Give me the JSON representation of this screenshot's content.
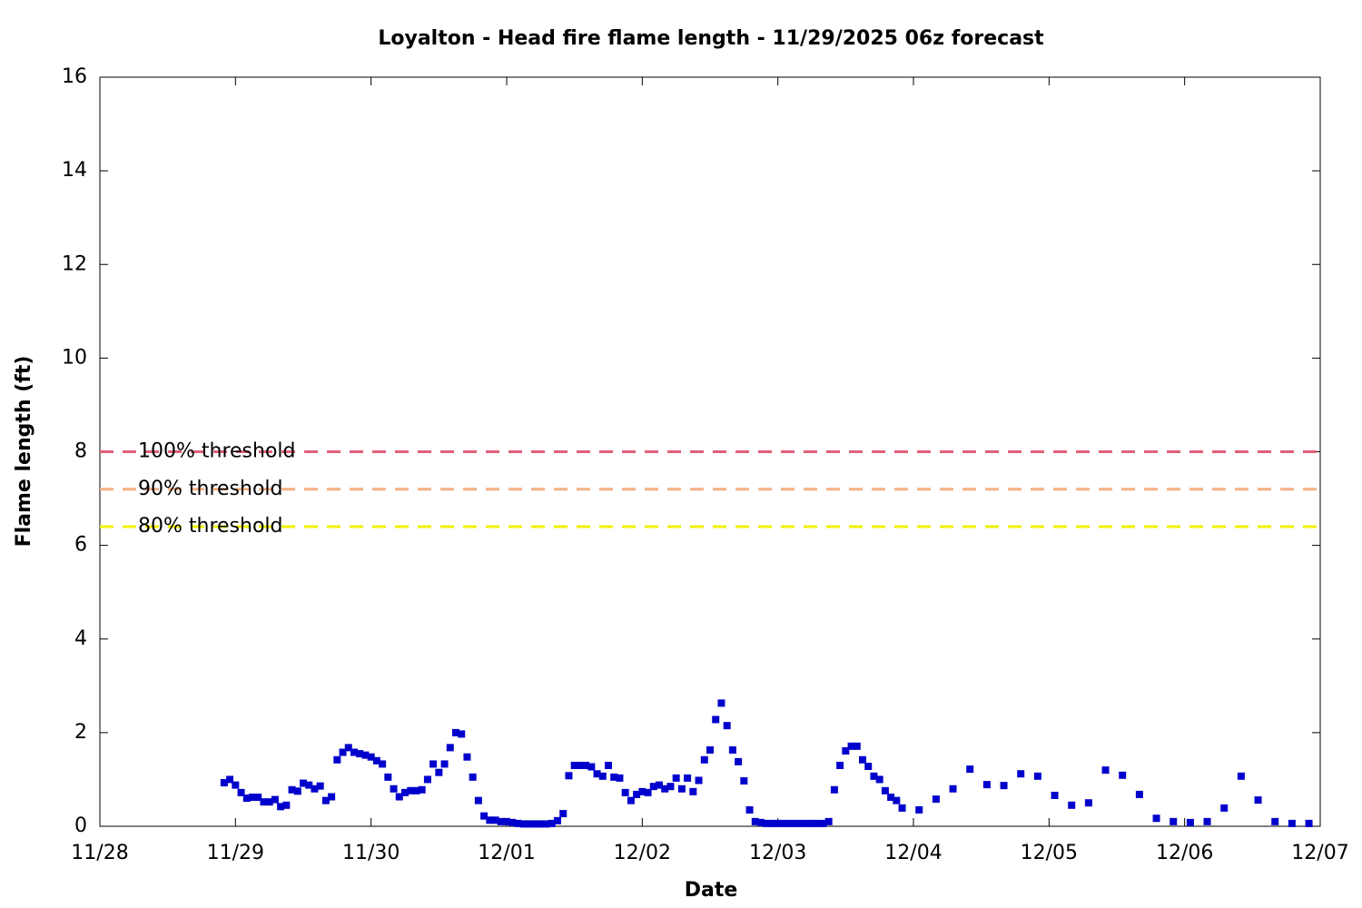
{
  "chart_data": {
    "type": "scatter",
    "title": "Loyalton - Head fire flame length - 11/29/2025 06z forecast",
    "x_label": "Date",
    "y_label": "Flame length (ft)",
    "xlim": [
      0,
      216
    ],
    "ylim": [
      0,
      16
    ],
    "xticks": [
      {
        "value": 0,
        "label": "11/28"
      },
      {
        "value": 24,
        "label": "11/29"
      },
      {
        "value": 48,
        "label": "11/30"
      },
      {
        "value": 72,
        "label": "12/01"
      },
      {
        "value": 96,
        "label": "12/02"
      },
      {
        "value": 120,
        "label": "12/03"
      },
      {
        "value": 144,
        "label": "12/04"
      },
      {
        "value": 168,
        "label": "12/05"
      },
      {
        "value": 192,
        "label": "12/06"
      },
      {
        "value": 216,
        "label": "12/07"
      }
    ],
    "yticks": [
      0,
      2,
      4,
      6,
      8,
      10,
      12,
      14,
      16
    ],
    "thresholds": [
      {
        "name": "100% threshold",
        "value": 8,
        "color": "#e0607a"
      },
      {
        "name": "90% threshold",
        "value": 7.2,
        "color": "#f4b084"
      },
      {
        "name": "80% threshold",
        "value": 6.4,
        "color": "#f0f000"
      }
    ],
    "series": [
      {
        "color": "#0000cc",
        "x": [
          22,
          23,
          24,
          25,
          26,
          27,
          28,
          29,
          30,
          31,
          32,
          33,
          34,
          35,
          36,
          37,
          38,
          39,
          40,
          41,
          42,
          43,
          44,
          45,
          46,
          47,
          48,
          49,
          50,
          51,
          52,
          53,
          54,
          55,
          56,
          57,
          58,
          59,
          60,
          61,
          62,
          63,
          64,
          65,
          66,
          67,
          68,
          69,
          70,
          71,
          72,
          73,
          74,
          75,
          76,
          77,
          78,
          79,
          80,
          81,
          82,
          83,
          84,
          85,
          86,
          87,
          88,
          89,
          90,
          91,
          92,
          93,
          94,
          95,
          96,
          97,
          98,
          99,
          100,
          101,
          102,
          103,
          104,
          105,
          106,
          107,
          108,
          109,
          110,
          111,
          112,
          113,
          114,
          115,
          116,
          117,
          118,
          119,
          120,
          121,
          122,
          123,
          124,
          125,
          126,
          127,
          128,
          129,
          130,
          131,
          132,
          133,
          134,
          135,
          136,
          137,
          138,
          139,
          140,
          141,
          142,
          145,
          148,
          151,
          154,
          157,
          160,
          163,
          166,
          169,
          172,
          175,
          178,
          181,
          184,
          187,
          190,
          193,
          196,
          199,
          202,
          205,
          208,
          211,
          214
        ],
        "values": [
          0.93,
          1.0,
          0.88,
          0.72,
          0.6,
          0.62,
          0.62,
          0.52,
          0.52,
          0.57,
          0.42,
          0.45,
          0.78,
          0.75,
          0.92,
          0.88,
          0.8,
          0.86,
          0.55,
          0.63,
          1.42,
          1.58,
          1.68,
          1.58,
          1.55,
          1.52,
          1.48,
          1.4,
          1.33,
          1.05,
          0.8,
          0.63,
          0.72,
          0.76,
          0.76,
          0.78,
          1.0,
          1.33,
          1.15,
          1.33,
          1.68,
          2.0,
          1.97,
          1.48,
          1.05,
          0.55,
          0.22,
          0.13,
          0.13,
          0.1,
          0.1,
          0.08,
          0.06,
          0.05,
          0.05,
          0.05,
          0.05,
          0.05,
          0.06,
          0.12,
          0.27,
          1.08,
          1.3,
          1.3,
          1.3,
          1.27,
          1.12,
          1.07,
          1.3,
          1.05,
          1.03,
          0.72,
          0.55,
          0.68,
          0.74,
          0.72,
          0.85,
          0.88,
          0.8,
          0.85,
          1.03,
          0.8,
          1.03,
          0.74,
          0.98,
          1.42,
          1.63,
          2.28,
          2.63,
          2.15,
          1.63,
          1.38,
          0.97,
          0.35,
          0.1,
          0.08,
          0.06,
          0.06,
          0.06,
          0.06,
          0.06,
          0.06,
          0.06,
          0.06,
          0.06,
          0.06,
          0.06,
          0.1,
          0.78,
          1.3,
          1.61,
          1.71,
          1.71,
          1.42,
          1.28,
          1.07,
          1.0,
          0.76,
          0.62,
          0.55,
          0.39,
          0.35,
          0.58,
          0.8,
          1.22,
          0.89,
          0.87,
          1.12,
          1.07,
          0.66,
          0.45,
          0.5,
          1.2,
          1.09,
          0.68,
          0.17,
          0.1,
          0.08,
          0.1,
          0.39,
          1.07,
          0.56,
          0.1,
          0.06,
          0.06
        ]
      }
    ]
  }
}
